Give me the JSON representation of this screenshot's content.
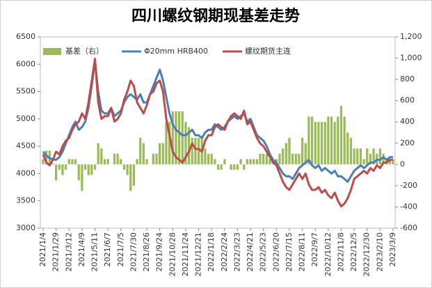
{
  "chart_data": {
    "type": "combo",
    "title": "四川螺纹钢期现基差走势",
    "categories": [
      "2021/1/4",
      null,
      null,
      null,
      "2021/1/29",
      null,
      null,
      null,
      "2021/3/12",
      null,
      null,
      null,
      "2021/4/9",
      null,
      null,
      null,
      "2021/5/11",
      null,
      null,
      null,
      "2021/6/7",
      null,
      null,
      null,
      "2021/7/5",
      null,
      null,
      null,
      "2021/7/30",
      null,
      null,
      null,
      "2021/8/26",
      null,
      null,
      null,
      "2021/9/24",
      null,
      null,
      null,
      "2021/10/28",
      null,
      null,
      null,
      "2021/11/24",
      null,
      null,
      null,
      "2021/12/21",
      null,
      null,
      null,
      "2022/1/18",
      null,
      null,
      null,
      "2022/2/24",
      null,
      null,
      null,
      "2022/3/23",
      null,
      null,
      null,
      "2022/4/21",
      null,
      null,
      null,
      "2022/5/23",
      null,
      null,
      null,
      "2022/6/20",
      null,
      null,
      null,
      "2022/7/15",
      null,
      null,
      null,
      "2022/8/11",
      null,
      null,
      null,
      "2022/9/7",
      null,
      null,
      null,
      "2022/10/12",
      null,
      null,
      null,
      "2022/11/8",
      null,
      null,
      null,
      "2022/12/5",
      null,
      null,
      null,
      "2022/12/30",
      null,
      null,
      null,
      "2023/2/10",
      null,
      null,
      null,
      "2023/3/9"
    ],
    "series": [
      {
        "name": "基差（右）",
        "type": "bar",
        "axis": "y2",
        "color": "#9bbb59",
        "values": [
          50,
          130,
          130,
          10,
          -150,
          -50,
          -100,
          -50,
          50,
          50,
          50,
          -150,
          -250,
          -50,
          -100,
          -100,
          -50,
          200,
          150,
          50,
          50,
          0,
          100,
          100,
          50,
          -50,
          -100,
          -250,
          -200,
          50,
          250,
          200,
          50,
          0,
          100,
          100,
          200,
          200,
          400,
          400,
          500,
          500,
          500,
          500,
          400,
          350,
          250,
          250,
          250,
          250,
          150,
          100,
          100,
          50,
          -50,
          -50,
          50,
          0,
          -50,
          -50,
          -50,
          50,
          -50,
          50,
          50,
          50,
          50,
          100,
          100,
          100,
          50,
          50,
          50,
          100,
          150,
          200,
          250,
          100,
          100,
          100,
          250,
          200,
          450,
          450,
          400,
          400,
          400,
          400,
          450,
          450,
          400,
          450,
          550,
          450,
          300,
          250,
          150,
          150,
          150,
          50,
          150,
          100,
          150,
          100,
          150,
          100,
          50,
          50,
          50
        ]
      },
      {
        "name": "Φ20mm HRB400",
        "type": "line",
        "color": "#4a7ebb",
        "values": [
          4400,
          4330,
          4280,
          4260,
          4250,
          4300,
          4400,
          4550,
          4700,
          4850,
          4950,
          4800,
          4850,
          4950,
          5200,
          5600,
          6050,
          5500,
          5150,
          5100,
          5100,
          5200,
          5050,
          5100,
          5150,
          5300,
          5400,
          5450,
          5400,
          5350,
          5450,
          5300,
          5300,
          5450,
          5600,
          5750,
          5900,
          5700,
          5400,
          5100,
          4900,
          4800,
          4750,
          4700,
          4700,
          4750,
          4800,
          4700,
          4700,
          4650,
          4750,
          4800,
          4800,
          4900,
          4850,
          4800,
          4850,
          4950,
          5000,
          5050,
          5000,
          5050,
          5100,
          4950,
          5000,
          4850,
          4700,
          4650,
          4600,
          4500,
          4350,
          4250,
          4200,
          4100,
          4000,
          3950,
          3950,
          3900,
          4000,
          4100,
          4150,
          4200,
          4250,
          4150,
          4100,
          4150,
          4050,
          4100,
          4050,
          4000,
          4050,
          3950,
          3950,
          3900,
          3850,
          3950,
          4050,
          4100,
          4150,
          4100,
          4150,
          4200,
          4200,
          4250,
          4250,
          4300,
          4250,
          4300,
          4300
        ]
      },
      {
        "name": "螺纹期货主连",
        "type": "line",
        "color": "#be4b48",
        "values": [
          4350,
          4200,
          4150,
          4250,
          4400,
          4350,
          4500,
          4600,
          4650,
          4800,
          4900,
          4950,
          5100,
          5000,
          5300,
          5700,
          6100,
          5300,
          5000,
          5050,
          5050,
          5200,
          4950,
          5000,
          5100,
          5350,
          5500,
          5700,
          5600,
          5300,
          5200,
          5100,
          5250,
          5450,
          5500,
          5650,
          5700,
          5500,
          5000,
          4700,
          4400,
          4300,
          4250,
          4200,
          4300,
          4400,
          4550,
          4450,
          4450,
          4400,
          4600,
          4700,
          4700,
          4850,
          4900,
          4850,
          4800,
          4950,
          5050,
          5100,
          5050,
          5000,
          5150,
          4900,
          4950,
          4800,
          4650,
          4550,
          4500,
          4400,
          4300,
          4200,
          4150,
          4000,
          3850,
          3750,
          3700,
          3800,
          3900,
          4000,
          3900,
          4000,
          3800,
          3700,
          3700,
          3750,
          3650,
          3700,
          3600,
          3550,
          3650,
          3500,
          3400,
          3450,
          3550,
          3700,
          3900,
          3950,
          4000,
          4050,
          4000,
          4100,
          4050,
          4150,
          4100,
          4200,
          4200,
          4250,
          4250
        ]
      }
    ],
    "ylim": [
      3000,
      6500
    ],
    "yticks": [
      3000,
      3500,
      4000,
      4500,
      5000,
      5500,
      6000,
      6500
    ],
    "y2lim": [
      -600,
      1200
    ],
    "y2ticks": [
      -600,
      -400,
      -200,
      0,
      200,
      400,
      600,
      800,
      {
        "value": 1000,
        "label": "1,000"
      },
      {
        "value": 1200,
        "label": "1,200"
      }
    ]
  }
}
